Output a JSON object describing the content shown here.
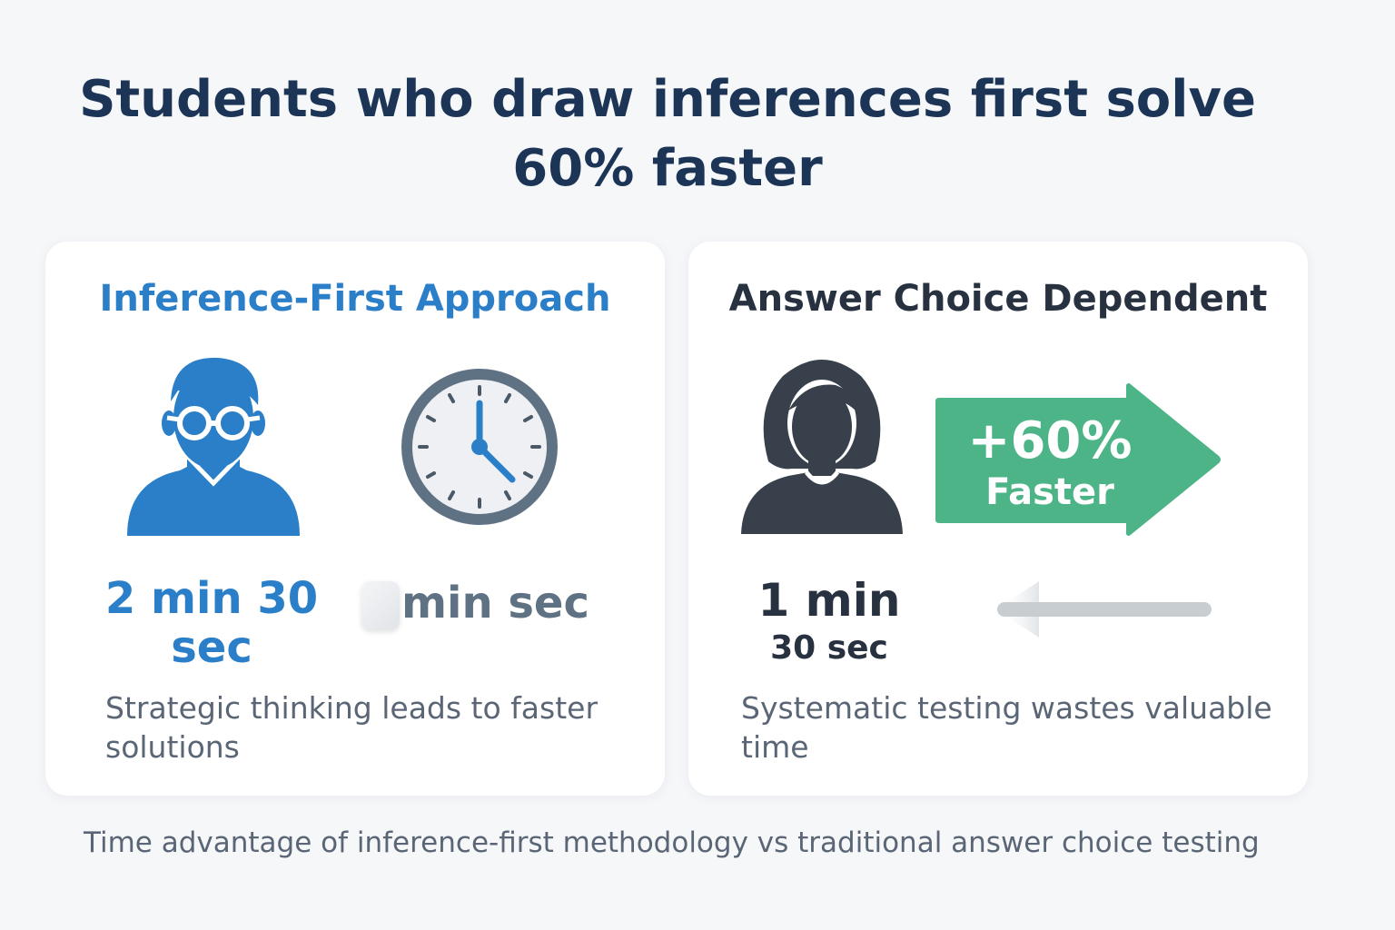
{
  "headline": "Students who draw inferences first solve 60% faster",
  "left_card": {
    "title": "Inference-First Approach",
    "student_icon": "male-student-with-glasses-icon",
    "clock_icon": "clock-icon",
    "time_line1": "2 min 30",
    "time_line2": "sec",
    "secondary_time": "min sec",
    "description": "Strategic thinking leads to faster solutions"
  },
  "right_card": {
    "title": "Answer Choice Dependent",
    "student_icon": "female-student-icon",
    "arrow_icon": "right-arrow-badge-icon",
    "badge_line1": "+60%",
    "badge_line2": "Faster",
    "back_arrow_icon": "left-arrow-icon",
    "time_line1": "1 min",
    "time_line2": "30 sec",
    "description": "Systematic testing wastes valuable time"
  },
  "caption": "Time advantage of inference-first methodology vs traditional answer choice testing",
  "colors": {
    "headline": "#1c3557",
    "accent_blue": "#2b7fc8",
    "dark_text": "#27313f",
    "badge_green": "#4db488",
    "muted": "#5a6675"
  }
}
